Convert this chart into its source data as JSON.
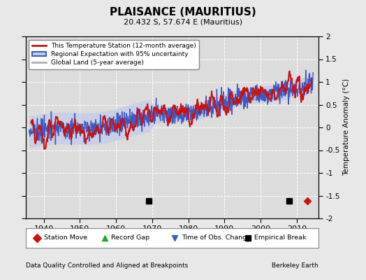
{
  "title": "PLAISANCE (MAURITIUS)",
  "subtitle": "20.432 S, 57.674 E (Mauritius)",
  "ylabel": "Temperature Anomaly (°C)",
  "xlabel_left": "Data Quality Controlled and Aligned at Breakpoints",
  "xlabel_right": "Berkeley Earth",
  "ylim": [
    -2.0,
    2.0
  ],
  "xlim": [
    1935,
    2016
  ],
  "yticks": [
    -2,
    -1.5,
    -1,
    -0.5,
    0,
    0.5,
    1,
    1.5,
    2
  ],
  "xticks": [
    1940,
    1950,
    1960,
    1970,
    1980,
    1990,
    2000,
    2010
  ],
  "background_color": "#e8e8e8",
  "plot_bg": "#dcdcdc",
  "empirical_breaks": [
    1969,
    2008
  ],
  "station_moves": [
    2013
  ],
  "time_obs_changes": [],
  "record_gaps": [],
  "seed": 42
}
